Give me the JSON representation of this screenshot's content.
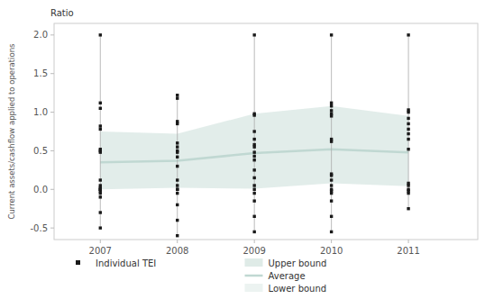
{
  "chart_data": {
    "type": "scatter",
    "annotations": [
      "Ratio"
    ],
    "y_label": "Current assets/cashflow applied to operations",
    "x": [
      2007,
      2008,
      2009,
      2010,
      2011
    ],
    "series": [
      {
        "name": "Individual TEI",
        "type": "scatter",
        "color": "#1a1a1a",
        "marker": "square",
        "x": [
          2007,
          2007,
          2007,
          2007,
          2007,
          2007,
          2007,
          2007,
          2007,
          2007,
          2007,
          2007,
          2007,
          2007,
          2007,
          2007,
          2007,
          2007,
          2008,
          2008,
          2008,
          2008,
          2008,
          2008,
          2008,
          2008,
          2008,
          2008,
          2008,
          2008,
          2008,
          2008,
          2008,
          2008,
          2008,
          2008,
          2009,
          2009,
          2009,
          2009,
          2009,
          2009,
          2009,
          2009,
          2009,
          2009,
          2009,
          2009,
          2009,
          2009,
          2009,
          2009,
          2009,
          2009,
          2010,
          2010,
          2010,
          2010,
          2010,
          2010,
          2010,
          2010,
          2010,
          2010,
          2010,
          2010,
          2010,
          2010,
          2010,
          2010,
          2010,
          2010,
          2011,
          2011,
          2011,
          2011,
          2011,
          2011,
          2011,
          2011,
          2011,
          2011,
          2011,
          2011,
          2011,
          2011,
          2011
        ],
        "values": [
          2.0,
          1.12,
          1.05,
          0.82,
          0.78,
          0.52,
          0.5,
          0.48,
          0.12,
          0.05,
          0.02,
          0.0,
          0.0,
          -0.02,
          -0.05,
          -0.1,
          -0.3,
          -0.5,
          1.22,
          1.18,
          0.88,
          0.85,
          0.6,
          0.55,
          0.5,
          0.48,
          0.42,
          0.3,
          0.12,
          0.05,
          0.0,
          0.0,
          -0.05,
          -0.2,
          -0.4,
          -0.6,
          2.0,
          0.98,
          0.96,
          0.75,
          0.65,
          0.58,
          0.55,
          0.48,
          0.43,
          0.38,
          0.25,
          0.15,
          0.05,
          0.0,
          -0.05,
          -0.15,
          -0.35,
          -0.55,
          2.0,
          1.12,
          1.08,
          1.02,
          0.98,
          0.95,
          0.65,
          0.62,
          0.2,
          0.18,
          0.12,
          0.05,
          0.0,
          -0.02,
          -0.05,
          -0.15,
          -0.35,
          -0.55,
          2.0,
          1.03,
          1.0,
          0.92,
          0.85,
          0.78,
          0.72,
          0.65,
          0.52,
          0.08,
          0.05,
          0.0,
          -0.02,
          -0.05,
          -0.25
        ]
      },
      {
        "name": "Upper bound",
        "type": "area",
        "color": "#ddeae6",
        "values": [
          0.75,
          0.72,
          0.98,
          1.08,
          0.95
        ]
      },
      {
        "name": "Average",
        "type": "line",
        "color": "#c0d8d2",
        "values": [
          0.35,
          0.37,
          0.47,
          0.52,
          0.48
        ]
      },
      {
        "name": "Lower bound",
        "type": "area",
        "color": "#ddeae6",
        "values": [
          0.0,
          0.02,
          0.01,
          0.08,
          0.04
        ]
      }
    ],
    "xlim": [
      2006.4,
      2011.9
    ],
    "xticks": [
      2007,
      2008,
      2009,
      2010,
      2011
    ],
    "ylim": [
      -0.65,
      2.15
    ],
    "yticks": [
      -0.5,
      {
        "value": 0.0,
        "label": "0.0"
      },
      0.5,
      {
        "value": 1.0,
        "label": "1.0"
      },
      1.5,
      {
        "value": 2.0,
        "label": "2.0"
      }
    ],
    "grid": false,
    "legend": "bottom"
  }
}
